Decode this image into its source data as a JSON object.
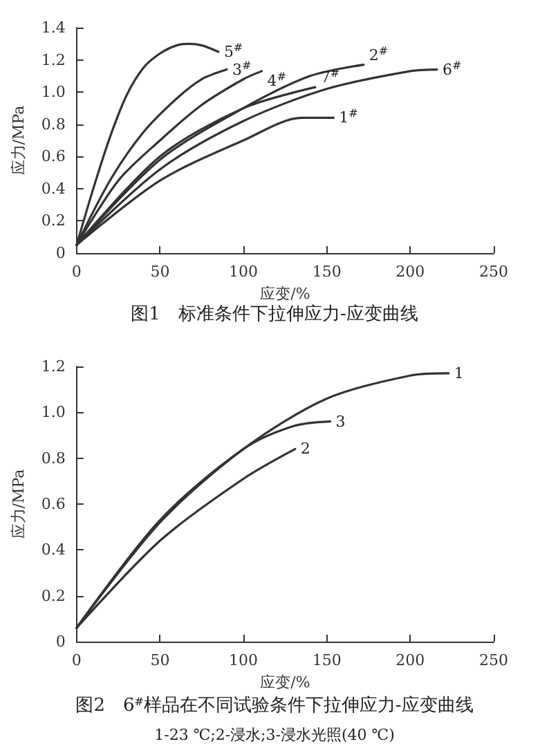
{
  "chart_data": [
    {
      "type": "line",
      "title": "图1　标准条件下拉伸应力-应变曲线",
      "xlabel": "应变/%",
      "ylabel": "应力/MPa",
      "xlim": [
        0,
        250
      ],
      "xticks": [
        0,
        50,
        100,
        150,
        200,
        250
      ],
      "ylim": [
        0,
        1.4
      ],
      "yticks": [
        0,
        0.2,
        0.4,
        0.6,
        0.8,
        {
          "value": 1,
          "label": "1.0"
        },
        1.2,
        1.4
      ],
      "grid": false,
      "legend": false,
      "marker": "none",
      "series": [
        {
          "name": "5$^{#}$",
          "color": "#333333",
          "x": [
            0,
            10,
            20,
            30,
            40,
            50,
            60,
            67,
            75,
            85
          ],
          "values": [
            0.05,
            0.4,
            0.72,
            0.98,
            1.15,
            1.24,
            1.29,
            1.3,
            1.29,
            1.25
          ]
        },
        {
          "name": "3$^{#}$",
          "color": "#333333",
          "x": [
            0,
            20,
            40,
            60,
            75,
            90
          ],
          "values": [
            0.05,
            0.45,
            0.75,
            0.96,
            1.08,
            1.14
          ]
        },
        {
          "name": "4$^{#}$",
          "color": "#333333",
          "x": [
            0,
            25,
            50,
            75,
            100,
            111
          ],
          "values": [
            0.05,
            0.45,
            0.7,
            0.92,
            1.08,
            1.13
          ]
        },
        {
          "name": "2$^{#}$",
          "color": "#333333",
          "x": [
            0,
            50,
            100,
            140,
            172
          ],
          "values": [
            0.05,
            0.58,
            0.9,
            1.1,
            1.17
          ]
        },
        {
          "name": "7$^{#}$",
          "color": "#333333",
          "x": [
            0,
            50,
            100,
            143
          ],
          "values": [
            0.05,
            0.6,
            0.9,
            1.03
          ]
        },
        {
          "name": "6$^{#}$",
          "color": "#333333",
          "x": [
            0,
            50,
            100,
            150,
            200,
            216
          ],
          "values": [
            0.05,
            0.52,
            0.82,
            1.02,
            1.13,
            1.14
          ]
        },
        {
          "name": "1$^{#}$",
          "color": "#333333",
          "x": [
            0,
            50,
            100,
            135,
            154
          ],
          "values": [
            0.05,
            0.45,
            0.7,
            0.84,
            0.84
          ]
        }
      ]
    },
    {
      "type": "line",
      "title": "图2　6$^{#}$样品在不同试验条件下拉伸应力-应变曲线",
      "subtitle": "1-23 ℃;2-浸水;3-浸水光照(40 ℃)",
      "xlabel": "应变/%",
      "ylabel": "应力/MPa",
      "xlim": [
        0,
        250
      ],
      "xticks": [
        0,
        50,
        100,
        150,
        200,
        250
      ],
      "ylim": [
        0,
        1.2
      ],
      "yticks": [
        0,
        0.2,
        0.4,
        0.6,
        0.8,
        {
          "value": 1,
          "label": "1.0"
        },
        1.2
      ],
      "grid": false,
      "legend": false,
      "marker": "none",
      "series": [
        {
          "name": "1",
          "color": "#333333",
          "x": [
            0,
            50,
            100,
            150,
            200,
            223
          ],
          "values": [
            0.06,
            0.52,
            0.84,
            1.06,
            1.16,
            1.17
          ]
        },
        {
          "name": "3",
          "color": "#333333",
          "x": [
            0,
            50,
            100,
            130,
            152
          ],
          "values": [
            0.06,
            0.53,
            0.84,
            0.94,
            0.96
          ]
        },
        {
          "name": "2",
          "color": "#333333",
          "x": [
            0,
            50,
            100,
            131
          ],
          "values": [
            0.06,
            0.44,
            0.71,
            0.84
          ]
        }
      ]
    }
  ]
}
